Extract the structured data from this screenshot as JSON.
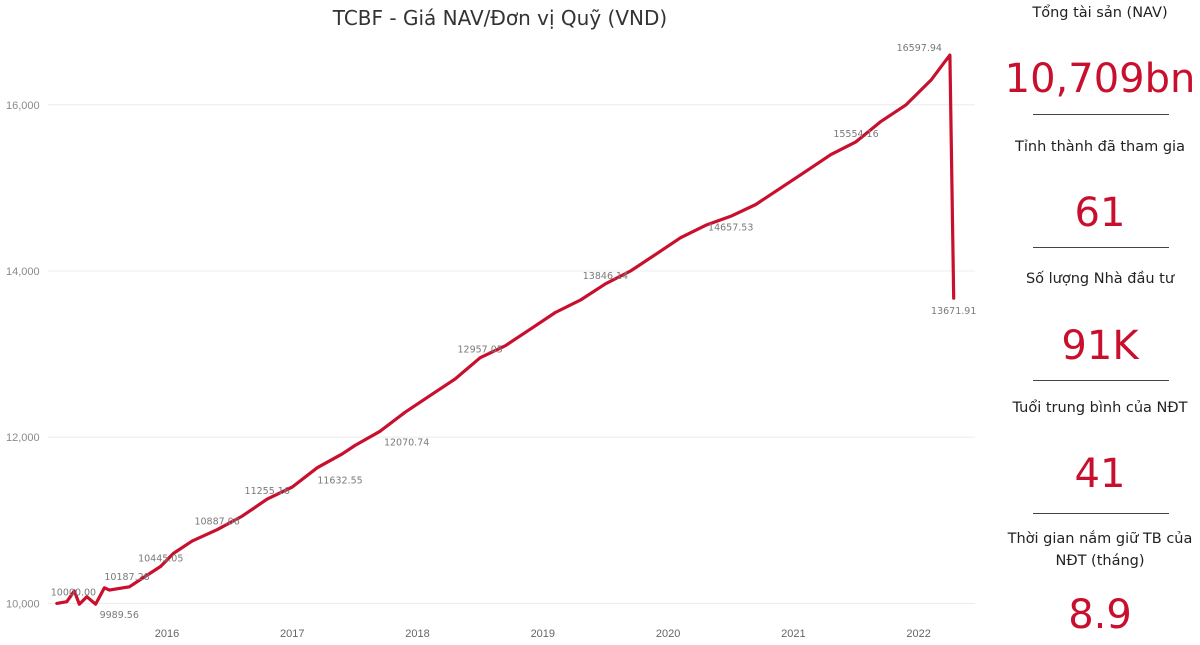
{
  "chart_data": {
    "type": "line",
    "title": "TCBF - Giá NAV/Đơn vị Quỹ (VND)",
    "xlabel": "",
    "ylabel": "",
    "x_ticks": [
      "2016",
      "2017",
      "2018",
      "2019",
      "2020",
      "2021",
      "2022"
    ],
    "y_ticks": [
      "10,000",
      "12,000",
      "14,000",
      "16,000"
    ],
    "ylim": [
      9800,
      16900
    ],
    "xlim": [
      2015.55,
      2022.95
    ],
    "grid": "horizontal",
    "color": "#c8102e",
    "series": [
      {
        "x": [
          2015.62,
          2015.7,
          2015.76,
          2015.8,
          2015.86,
          2015.93,
          2016.0,
          2016.04,
          2016.2,
          2016.3,
          2016.45,
          2016.55,
          2016.7,
          2016.9,
          2017.1,
          2017.3,
          2017.5,
          2017.7,
          2017.9,
          2018.0,
          2018.2,
          2018.4,
          2018.6,
          2018.8,
          2019.0,
          2019.2,
          2019.4,
          2019.6,
          2019.8,
          2020.0,
          2020.2,
          2020.4,
          2020.6,
          2020.8,
          2021.0,
          2021.2,
          2021.4,
          2021.6,
          2021.8,
          2022.0,
          2022.2,
          2022.4,
          2022.6,
          2022.7,
          2022.75,
          2022.78
        ],
        "y": [
          10000,
          10020,
          10150,
          9990,
          10080,
          9989.56,
          10187.28,
          10160,
          10200,
          10300,
          10445,
          10600,
          10750,
          10887.06,
          11050,
          11255.16,
          11400,
          11632.55,
          11800,
          11900,
          12070.74,
          12300,
          12500,
          12700,
          12957.05,
          13100,
          13300,
          13500,
          13650,
          13846.14,
          14000,
          14200,
          14400,
          14550,
          14657.53,
          14800,
          15000,
          15200,
          15400,
          15554.16,
          15800,
          16000,
          16300,
          16500,
          16597.94,
          13671.91
        ]
      }
    ],
    "data_labels": [
      {
        "x": 2015.62,
        "y": 10000,
        "text": "10000.00"
      },
      {
        "x": 2015.93,
        "y": 9989.56,
        "text": "9989.56"
      },
      {
        "x": 2016.0,
        "y": 10187.28,
        "text": "10187.28"
      },
      {
        "x": 2016.45,
        "y": 10445,
        "text": "10445.05"
      },
      {
        "x": 2016.9,
        "y": 10887.06,
        "text": "10887.06"
      },
      {
        "x": 2017.3,
        "y": 11255.16,
        "text": "11255.16"
      },
      {
        "x": 2017.7,
        "y": 11632.55,
        "text": "11632.55"
      },
      {
        "x": 2018.2,
        "y": 12070.74,
        "text": "12070.74"
      },
      {
        "x": 2019.0,
        "y": 12957.05,
        "text": "12957.05"
      },
      {
        "x": 2020.0,
        "y": 13846.14,
        "text": "13846.14"
      },
      {
        "x": 2021.0,
        "y": 14657.53,
        "text": "14657.53"
      },
      {
        "x": 2022.0,
        "y": 15554.16,
        "text": "15554.16"
      },
      {
        "x": 2022.75,
        "y": 16597.94,
        "text": "16597.94"
      },
      {
        "x": 2022.78,
        "y": 13671.91,
        "text": "13671.91"
      }
    ]
  },
  "stats": [
    {
      "label": "Tổng tài sản (NAV)",
      "value": "10,709bn"
    },
    {
      "label": "Tỉnh thành đã tham gia",
      "value": "61"
    },
    {
      "label": "Số lượng Nhà đầu tư",
      "value": "91K"
    },
    {
      "label": "Tuổi trung bình của NĐT",
      "value": "41"
    },
    {
      "label": "Thời gian nắm giữ TB của NĐT (tháng)",
      "value": "8.9"
    }
  ]
}
